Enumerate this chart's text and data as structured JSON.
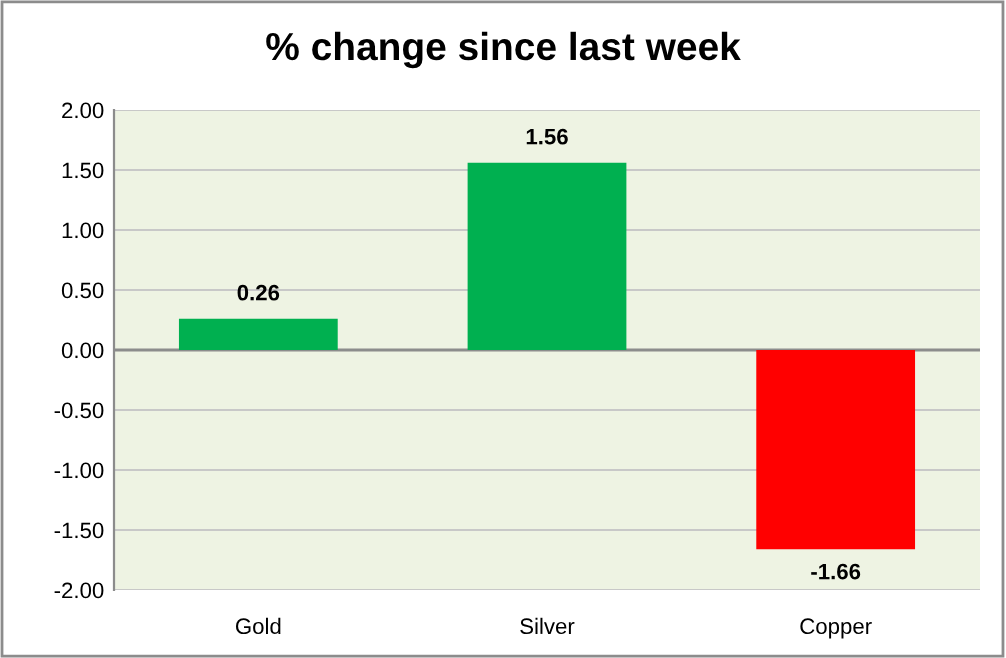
{
  "chart_data": {
    "type": "bar",
    "title": "% change since last week",
    "categories": [
      "Gold",
      "Silver",
      "Copper"
    ],
    "values": [
      0.26,
      1.56,
      -1.66
    ],
    "colors": [
      "#00b050",
      "#00b050",
      "#ff0000"
    ],
    "data_labels": true,
    "ylim": [
      -2.0,
      2.0
    ],
    "yticks": [
      {
        "value": -2.0,
        "label": "-2.00"
      },
      {
        "value": -1.5,
        "label": "-1.50"
      },
      {
        "value": -1.0,
        "label": "-1.00"
      },
      {
        "value": -0.5,
        "label": "-0.50"
      },
      {
        "value": 0.0,
        "label": "0.00"
      },
      {
        "value": 0.5,
        "label": "0.50"
      },
      {
        "value": 1.0,
        "label": "1.00"
      },
      {
        "value": 1.5,
        "label": "1.50"
      },
      {
        "value": 2.0,
        "label": "2.00"
      }
    ],
    "grid": "y"
  }
}
